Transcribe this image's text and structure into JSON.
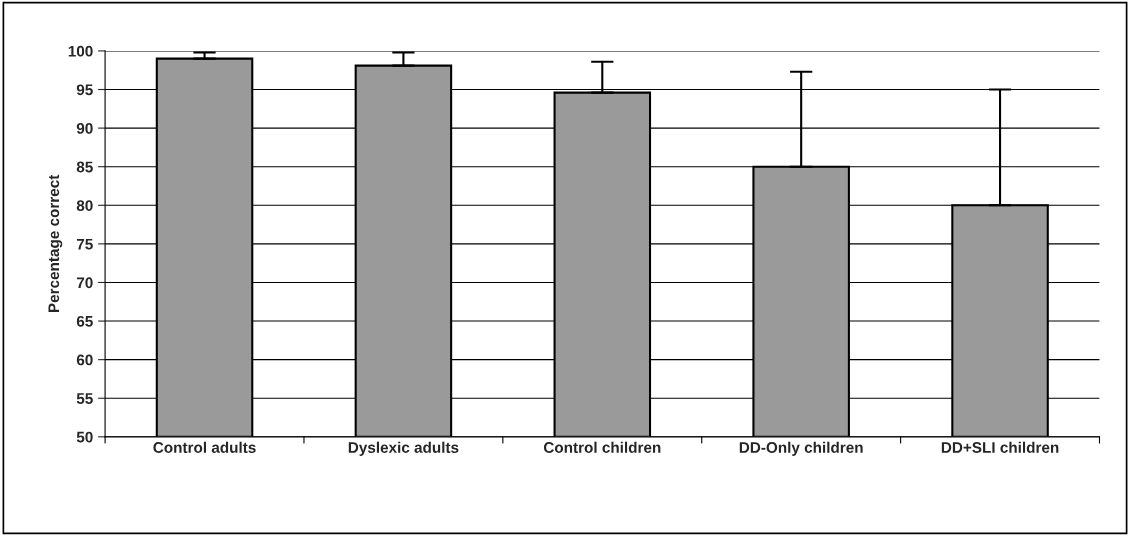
{
  "chart_data": {
    "type": "bar",
    "ylabel": "Percentage correct",
    "categories": [
      "Control adults",
      "Dyslexic adults",
      "Control children",
      "DD-Only children",
      "DD+SLI children"
    ],
    "values": [
      99.0,
      98.1,
      94.6,
      85.0,
      80.0
    ],
    "errors": [
      [
        99.0,
        99.8
      ],
      [
        98.1,
        99.8
      ],
      [
        94.6,
        98.6
      ],
      [
        85.0,
        97.3
      ],
      [
        80.0,
        95.0
      ]
    ],
    "color": "#9a9a9a",
    "ylim": [
      50,
      100
    ],
    "yticks": [
      50,
      55,
      60,
      65,
      70,
      75,
      80,
      85,
      90,
      95,
      100
    ],
    "grid": "y"
  }
}
